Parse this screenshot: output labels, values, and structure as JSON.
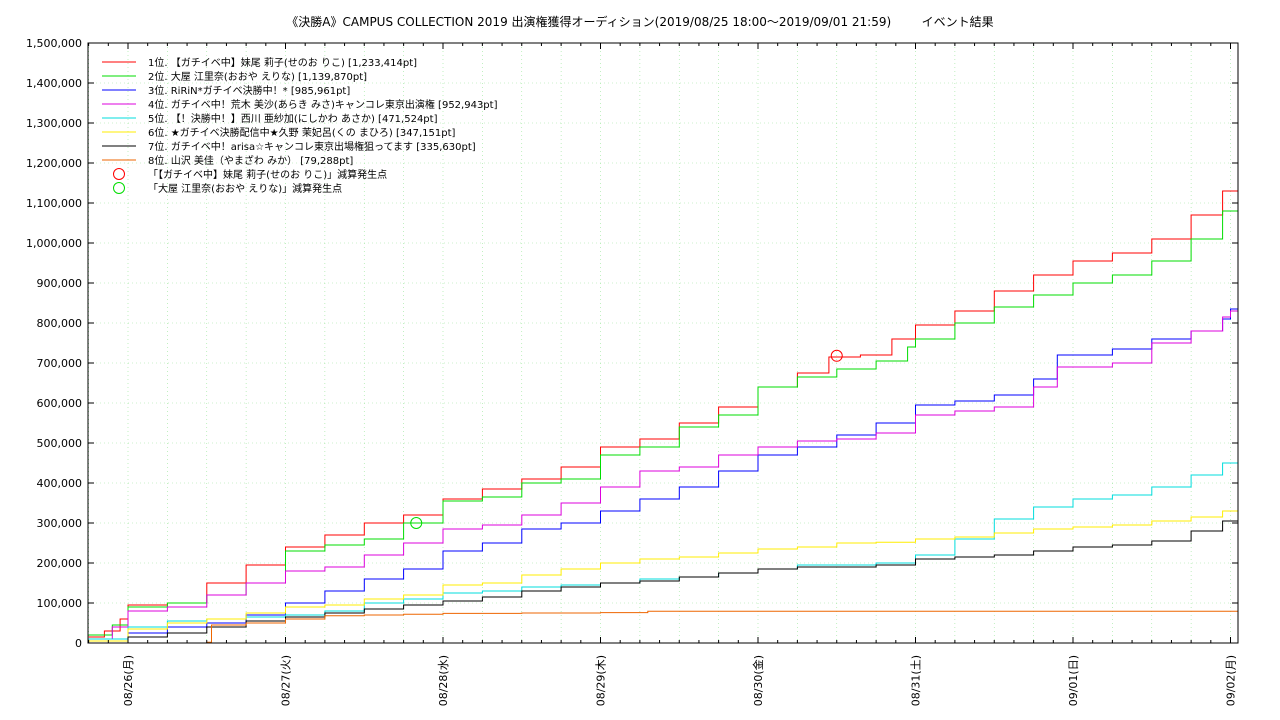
{
  "chart_data": {
    "type": "line",
    "title": "《決勝A》CAMPUS COLLECTION 2019 出演権獲得オーディション(2019/08/25 18:00〜2019/09/01 21:59)        イベント結果",
    "xlabel": "",
    "ylabel": "",
    "ylim": [
      0,
      1500000
    ],
    "x_ticks": [
      "08/26(月)",
      "08/27(火)",
      "08/28(水)",
      "08/29(木)",
      "08/30(金)",
      "08/31(土)",
      "09/01(日)",
      "09/02(月)"
    ],
    "y_ticks": [
      "0",
      "100,000",
      "200,000",
      "300,000",
      "400,000",
      "500,000",
      "600,000",
      "700,000",
      "800,000",
      "900,000",
      "1,000,000",
      "1,100,000",
      "1,200,000",
      "1,300,000",
      "1,400,000",
      "1,500,000"
    ],
    "grid": true,
    "legend_position": "top-left",
    "series": [
      {
        "name": "1位. 【ガチイベ中】妹尾 莉子(せのお りこ) [1,233,414pt]",
        "color": "#ff0000",
        "points": [
          [
            -0.25,
            15000
          ],
          [
            -0.15,
            30000
          ],
          [
            -0.05,
            60000
          ],
          [
            0.0,
            95000
          ],
          [
            0.25,
            100000
          ],
          [
            0.5,
            150000
          ],
          [
            0.75,
            195000
          ],
          [
            1.0,
            240000
          ],
          [
            1.25,
            270000
          ],
          [
            1.5,
            300000
          ],
          [
            1.75,
            320000
          ],
          [
            2.0,
            360000
          ],
          [
            2.25,
            385000
          ],
          [
            2.5,
            410000
          ],
          [
            2.75,
            440000
          ],
          [
            3.0,
            490000
          ],
          [
            3.25,
            510000
          ],
          [
            3.5,
            550000
          ],
          [
            3.75,
            590000
          ],
          [
            4.0,
            640000
          ],
          [
            4.25,
            675000
          ],
          [
            4.45,
            715000
          ],
          [
            4.65,
            720000
          ],
          [
            4.85,
            760000
          ],
          [
            5.0,
            795000
          ],
          [
            5.25,
            830000
          ],
          [
            5.5,
            880000
          ],
          [
            5.75,
            920000
          ],
          [
            6.0,
            955000
          ],
          [
            6.25,
            975000
          ],
          [
            6.5,
            1010000
          ],
          [
            6.75,
            1070000
          ],
          [
            6.95,
            1130000
          ],
          [
            7.05,
            1200000
          ],
          [
            7.1,
            1233414
          ],
          [
            7.2,
            1233414
          ]
        ]
      },
      {
        "name": "2位. 大屋 江里奈(おおや えりな) [1,139,870pt]",
        "color": "#00dd00",
        "points": [
          [
            -0.25,
            20000
          ],
          [
            -0.1,
            45000
          ],
          [
            0.0,
            90000
          ],
          [
            0.25,
            100000
          ],
          [
            0.5,
            120000
          ],
          [
            0.75,
            150000
          ],
          [
            1.0,
            230000
          ],
          [
            1.25,
            245000
          ],
          [
            1.5,
            260000
          ],
          [
            1.75,
            300000
          ],
          [
            2.0,
            355000
          ],
          [
            2.25,
            365000
          ],
          [
            2.5,
            400000
          ],
          [
            2.75,
            410000
          ],
          [
            3.0,
            470000
          ],
          [
            3.25,
            490000
          ],
          [
            3.5,
            540000
          ],
          [
            3.75,
            570000
          ],
          [
            4.0,
            640000
          ],
          [
            4.25,
            665000
          ],
          [
            4.5,
            685000
          ],
          [
            4.75,
            705000
          ],
          [
            4.95,
            740000
          ],
          [
            5.0,
            760000
          ],
          [
            5.25,
            800000
          ],
          [
            5.5,
            840000
          ],
          [
            5.75,
            870000
          ],
          [
            6.0,
            900000
          ],
          [
            6.25,
            920000
          ],
          [
            6.5,
            955000
          ],
          [
            6.75,
            1010000
          ],
          [
            6.95,
            1080000
          ],
          [
            7.05,
            1130000
          ],
          [
            7.1,
            1139870
          ],
          [
            7.2,
            1139870
          ]
        ]
      },
      {
        "name": "3位. RiRiN*ガチイベ決勝中！* [985,961pt]",
        "color": "#0000ff",
        "points": [
          [
            -0.25,
            5000
          ],
          [
            0.0,
            25000
          ],
          [
            0.25,
            40000
          ],
          [
            0.5,
            50000
          ],
          [
            0.75,
            70000
          ],
          [
            1.0,
            100000
          ],
          [
            1.25,
            130000
          ],
          [
            1.5,
            160000
          ],
          [
            1.75,
            185000
          ],
          [
            2.0,
            230000
          ],
          [
            2.25,
            250000
          ],
          [
            2.5,
            285000
          ],
          [
            2.75,
            300000
          ],
          [
            3.0,
            330000
          ],
          [
            3.25,
            360000
          ],
          [
            3.5,
            390000
          ],
          [
            3.75,
            430000
          ],
          [
            4.0,
            470000
          ],
          [
            4.25,
            490000
          ],
          [
            4.5,
            520000
          ],
          [
            4.75,
            550000
          ],
          [
            5.0,
            595000
          ],
          [
            5.25,
            605000
          ],
          [
            5.5,
            620000
          ],
          [
            5.75,
            660000
          ],
          [
            5.9,
            720000
          ],
          [
            6.25,
            735000
          ],
          [
            6.5,
            760000
          ],
          [
            6.75,
            780000
          ],
          [
            6.95,
            810000
          ],
          [
            7.0,
            835000
          ],
          [
            7.05,
            985961
          ],
          [
            7.2,
            985961
          ]
        ]
      },
      {
        "name": "4位. ガチイベ中！荒木 美沙(あらき みさ)キャンコレ東京出演権 [952,943pt]",
        "color": "#dd00dd",
        "points": [
          [
            -0.25,
            10000
          ],
          [
            -0.1,
            40000
          ],
          [
            0.0,
            80000
          ],
          [
            0.25,
            90000
          ],
          [
            0.5,
            120000
          ],
          [
            0.75,
            150000
          ],
          [
            1.0,
            180000
          ],
          [
            1.25,
            190000
          ],
          [
            1.5,
            220000
          ],
          [
            1.75,
            250000
          ],
          [
            2.0,
            285000
          ],
          [
            2.25,
            295000
          ],
          [
            2.5,
            320000
          ],
          [
            2.75,
            350000
          ],
          [
            3.0,
            390000
          ],
          [
            3.25,
            430000
          ],
          [
            3.5,
            440000
          ],
          [
            3.75,
            470000
          ],
          [
            4.0,
            490000
          ],
          [
            4.25,
            505000
          ],
          [
            4.5,
            510000
          ],
          [
            4.75,
            525000
          ],
          [
            5.0,
            570000
          ],
          [
            5.25,
            580000
          ],
          [
            5.5,
            590000
          ],
          [
            5.75,
            640000
          ],
          [
            5.9,
            690000
          ],
          [
            6.25,
            700000
          ],
          [
            6.5,
            750000
          ],
          [
            6.75,
            780000
          ],
          [
            6.95,
            815000
          ],
          [
            7.0,
            830000
          ],
          [
            7.05,
            952943
          ],
          [
            7.2,
            952943
          ]
        ]
      },
      {
        "name": "5位. 【！決勝中！】西川 亜紗加(にしかわ あさか) [471,524pt]",
        "color": "#00dddd",
        "points": [
          [
            -0.25,
            10000
          ],
          [
            0.0,
            40000
          ],
          [
            0.25,
            55000
          ],
          [
            0.5,
            60000
          ],
          [
            0.75,
            65000
          ],
          [
            1.0,
            70000
          ],
          [
            1.25,
            80000
          ],
          [
            1.5,
            100000
          ],
          [
            1.75,
            110000
          ],
          [
            2.0,
            125000
          ],
          [
            2.25,
            130000
          ],
          [
            2.5,
            140000
          ],
          [
            2.75,
            145000
          ],
          [
            3.0,
            150000
          ],
          [
            3.25,
            160000
          ],
          [
            3.5,
            165000
          ],
          [
            3.75,
            175000
          ],
          [
            4.0,
            185000
          ],
          [
            4.25,
            195000
          ],
          [
            4.5,
            195000
          ],
          [
            4.75,
            200000
          ],
          [
            5.0,
            220000
          ],
          [
            5.25,
            260000
          ],
          [
            5.5,
            310000
          ],
          [
            5.75,
            340000
          ],
          [
            6.0,
            360000
          ],
          [
            6.25,
            370000
          ],
          [
            6.5,
            390000
          ],
          [
            6.75,
            420000
          ],
          [
            6.95,
            450000
          ],
          [
            7.05,
            471524
          ],
          [
            7.2,
            471524
          ]
        ]
      },
      {
        "name": "6位. ★ガチイベ決勝配信中★久野 茉妃呂(くの まひろ) [347,151pt]",
        "color": "#ffee00",
        "points": [
          [
            -0.25,
            5000
          ],
          [
            0.0,
            35000
          ],
          [
            0.25,
            50000
          ],
          [
            0.5,
            60000
          ],
          [
            0.75,
            75000
          ],
          [
            1.0,
            90000
          ],
          [
            1.25,
            95000
          ],
          [
            1.5,
            110000
          ],
          [
            1.75,
            120000
          ],
          [
            2.0,
            145000
          ],
          [
            2.25,
            150000
          ],
          [
            2.5,
            170000
          ],
          [
            2.75,
            185000
          ],
          [
            3.0,
            200000
          ],
          [
            3.25,
            210000
          ],
          [
            3.5,
            215000
          ],
          [
            3.75,
            225000
          ],
          [
            4.0,
            235000
          ],
          [
            4.25,
            240000
          ],
          [
            4.5,
            250000
          ],
          [
            4.75,
            252000
          ],
          [
            5.0,
            260000
          ],
          [
            5.25,
            265000
          ],
          [
            5.5,
            275000
          ],
          [
            5.75,
            285000
          ],
          [
            6.0,
            290000
          ],
          [
            6.25,
            295000
          ],
          [
            6.5,
            305000
          ],
          [
            6.75,
            315000
          ],
          [
            6.95,
            330000
          ],
          [
            7.05,
            347151
          ],
          [
            7.2,
            347151
          ]
        ]
      },
      {
        "name": "7位. ガチイベ中！arisa☆キャンコレ東京出場権狙ってます [335,630pt]",
        "color": "#000000",
        "points": [
          [
            -0.25,
            0
          ],
          [
            0.0,
            15000
          ],
          [
            0.25,
            25000
          ],
          [
            0.5,
            40000
          ],
          [
            0.75,
            55000
          ],
          [
            1.0,
            65000
          ],
          [
            1.25,
            75000
          ],
          [
            1.5,
            85000
          ],
          [
            1.75,
            95000
          ],
          [
            2.0,
            105000
          ],
          [
            2.25,
            115000
          ],
          [
            2.5,
            130000
          ],
          [
            2.75,
            140000
          ],
          [
            3.0,
            150000
          ],
          [
            3.25,
            155000
          ],
          [
            3.5,
            165000
          ],
          [
            3.75,
            175000
          ],
          [
            4.0,
            185000
          ],
          [
            4.25,
            190000
          ],
          [
            4.5,
            190000
          ],
          [
            4.75,
            195000
          ],
          [
            5.0,
            210000
          ],
          [
            5.25,
            215000
          ],
          [
            5.5,
            220000
          ],
          [
            5.75,
            230000
          ],
          [
            6.0,
            240000
          ],
          [
            6.25,
            245000
          ],
          [
            6.5,
            255000
          ],
          [
            6.75,
            280000
          ],
          [
            6.95,
            305000
          ],
          [
            7.05,
            335630
          ],
          [
            7.2,
            335630
          ]
        ]
      },
      {
        "name": "8位. 山沢 美佳（やまざわ みか） [79,288pt]",
        "color": "#ee6600",
        "points": [
          [
            -0.25,
            0
          ],
          [
            0.5,
            2000
          ],
          [
            0.53,
            45000
          ],
          [
            0.75,
            50000
          ],
          [
            1.0,
            60000
          ],
          [
            1.25,
            68000
          ],
          [
            1.5,
            70000
          ],
          [
            1.75,
            72000
          ],
          [
            2.0,
            74000
          ],
          [
            2.5,
            75000
          ],
          [
            3.0,
            76000
          ],
          [
            3.3,
            79288
          ],
          [
            7.2,
            79288
          ]
        ]
      }
    ],
    "markers": [
      {
        "name": "「【ガチイベ中】妹尾 莉子(せのお りこ)」減算発生点",
        "color": "#ff0000",
        "x": 4.5,
        "y": 718000
      },
      {
        "name": "「大屋 江里奈(おおや えりな)」減算発生点",
        "color": "#00dd00",
        "x": 1.83,
        "y": 300000
      }
    ]
  }
}
